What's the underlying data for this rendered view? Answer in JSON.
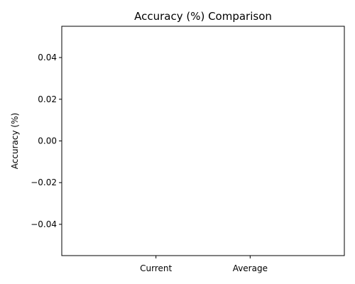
{
  "chart_data": {
    "type": "bar",
    "title": "Accuracy (%) Comparison",
    "xlabel": "",
    "ylabel": "Accuracy (%)",
    "categories": [
      "Current",
      "Average"
    ],
    "values": [
      0,
      0
    ],
    "ylim": [
      -0.055,
      0.055
    ],
    "yticks": [
      -0.04,
      -0.02,
      0.0,
      0.02,
      0.04
    ],
    "ytick_labels": [
      "−0.04",
      "−0.02",
      "0.00",
      "0.02",
      "0.04"
    ],
    "grid": false,
    "legend": "none"
  }
}
